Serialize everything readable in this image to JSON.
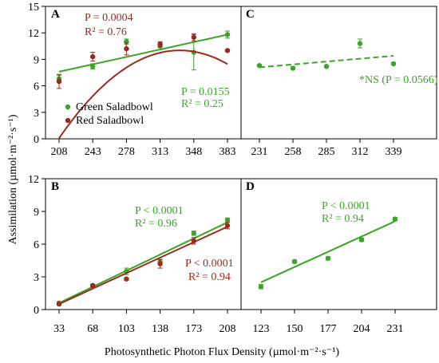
{
  "figure": {
    "ylabel": "Assimilation (µmol·m⁻²·s⁻¹)",
    "xlabel": "Photosynthetic Photon Flux Density (µmol·m⁻²·s⁻¹)",
    "colors": {
      "green": "#3aa626",
      "red": "#9c2a1e",
      "axis": "#000000"
    }
  },
  "chart_data": [
    {
      "panel": "A",
      "type": "scatter",
      "x": [
        208,
        243,
        278,
        313,
        348,
        383
      ],
      "ylim": [
        0,
        15
      ],
      "yticks": [
        0,
        3,
        6,
        9,
        12,
        15
      ],
      "series": [
        {
          "name": "Green Saladbowl",
          "color": "#3aa626",
          "y": [
            6.8,
            8.2,
            11.0,
            10.5,
            9.8,
            11.8
          ],
          "err": [
            0.4,
            0.3,
            0.3,
            0.4,
            2.0,
            0.4
          ],
          "fit": {
            "type": "line",
            "y_start": 7.6,
            "y_end": 11.8,
            "dash": false
          },
          "annotation": {
            "p": "P = 0.0155",
            "r2": "R² = 0.25"
          }
        },
        {
          "name": "Red Saladbowl",
          "color": "#9c2a1e",
          "y": [
            6.5,
            9.3,
            10.2,
            10.7,
            11.5,
            10.0
          ],
          "err": [
            0.8,
            0.5,
            0.7,
            0.3,
            0.4,
            0.1
          ],
          "fit": {
            "type": "quadratic",
            "coef": [
              -60.35,
              0.4221,
              -0.000633
            ],
            "dash": false
          },
          "annotation": {
            "p": "P = 0.0004",
            "r2": "R² = 0.76"
          }
        }
      ],
      "legend": [
        "Green Saladbowl",
        "Red Saladbowl"
      ],
      "legend_position": "lower-left"
    },
    {
      "panel": "C",
      "type": "scatter",
      "x": [
        231,
        258,
        285,
        312,
        339
      ],
      "ylim": [
        0,
        15
      ],
      "series": [
        {
          "name": "Green Saladbowl",
          "color": "#3aa626",
          "y": [
            8.3,
            8.0,
            8.2,
            10.8,
            8.5
          ],
          "err": [
            0.1,
            0.15,
            0.1,
            0.5,
            0.1
          ],
          "fit": {
            "type": "line",
            "y_start": 8.1,
            "y_end": 9.4,
            "dash": true
          },
          "annotation": {
            "p": "*NS (P = 0.0566)"
          }
        }
      ]
    },
    {
      "panel": "B",
      "type": "scatter",
      "x": [
        33,
        68,
        103,
        138,
        173,
        208
      ],
      "ylim": [
        0,
        12
      ],
      "yticks": [
        0,
        3,
        6,
        9,
        12
      ],
      "series": [
        {
          "name": "Green Saladbowl",
          "color": "#3aa626",
          "y": [
            0.6,
            2.2,
            3.5,
            4.4,
            7.0,
            8.2
          ],
          "err": [
            0.1,
            0.1,
            0.3,
            0.2,
            0.2,
            0.2
          ],
          "fit": {
            "type": "line",
            "y_start": 0.6,
            "y_end": 8.0,
            "dash": false
          },
          "annotation": {
            "p": "P < 0.0001",
            "r2": "R² = 0.96"
          }
        },
        {
          "name": "Red Saladbowl",
          "color": "#9c2a1e",
          "y": [
            0.5,
            2.2,
            2.8,
            4.2,
            6.3,
            7.7
          ],
          "err": [
            0.1,
            0.1,
            0.1,
            0.4,
            0.3,
            0.3
          ],
          "fit": {
            "type": "line",
            "y_start": 0.5,
            "y_end": 7.6,
            "dash": false
          },
          "annotation": {
            "p": "P < 0.0001",
            "r2": "R² = 0.94"
          }
        }
      ]
    },
    {
      "panel": "D",
      "type": "scatter",
      "x": [
        123,
        150,
        177,
        204,
        231
      ],
      "ylim": [
        0,
        12
      ],
      "series": [
        {
          "name": "Green Saladbowl",
          "color": "#3aa626",
          "y": [
            2.1,
            4.4,
            4.7,
            6.4,
            8.3
          ],
          "err": [
            0.2,
            0.15,
            0.15,
            0.15,
            0.15
          ],
          "fit": {
            "type": "line",
            "y_start": 2.5,
            "y_end": 8.1,
            "dash": false
          },
          "annotation": {
            "p": "P < 0.0001",
            "r2": "R² = 0.94"
          }
        }
      ]
    }
  ]
}
